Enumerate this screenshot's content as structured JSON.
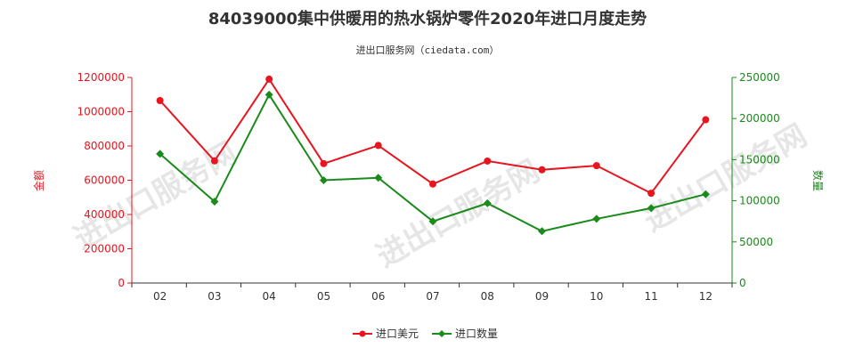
{
  "chart_data": {
    "type": "line",
    "title": "84039000集中供暖用的热水锅炉零件2020年进口月度走势",
    "subtitle": "进出口服务网（ciedata.com）",
    "watermark": "进出口服务网",
    "categories": [
      "02",
      "03",
      "04",
      "05",
      "06",
      "07",
      "08",
      "09",
      "10",
      "11",
      "12"
    ],
    "y_left": {
      "label": "金额",
      "range": [
        0,
        1200000
      ],
      "ticks": [
        "0",
        "200000",
        "400000",
        "600000",
        "800000",
        "1000000",
        "1200000"
      ]
    },
    "y_right": {
      "label": "数量",
      "range": [
        0,
        250000
      ],
      "ticks": [
        "0",
        "50000",
        "100000",
        "150000",
        "200000",
        "250000"
      ]
    },
    "series": [
      {
        "name": "进口美元",
        "axis": "left",
        "color": "#e8141e",
        "values": [
          1065000,
          713000,
          1190000,
          697000,
          803000,
          578000,
          712000,
          661000,
          685000,
          524000,
          953000
        ]
      },
      {
        "name": "进口数量",
        "axis": "right",
        "color": "#1a8a1a",
        "values": [
          157000,
          99000,
          229000,
          125000,
          128000,
          75000,
          97000,
          63000,
          78000,
          91000,
          108000
        ]
      }
    ],
    "grid": false,
    "legend_position": "bottom-center"
  },
  "colors": {
    "left_axis": "#e8141e",
    "right_axis": "#1a8a1a",
    "x_axis": "#333333"
  }
}
